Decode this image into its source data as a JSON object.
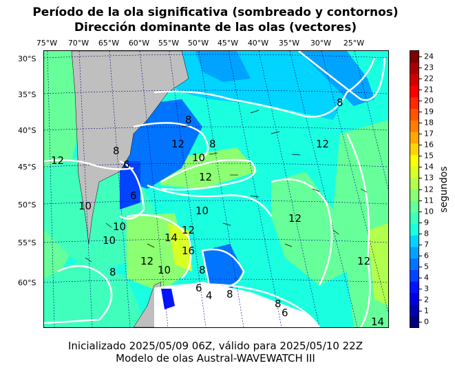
{
  "title": {
    "line1": "Período de la ola significativa (sombreado y contornos)",
    "line2": "Dirección dominante de las olas (vectores)"
  },
  "axes": {
    "longitude_labels": [
      "75°W",
      "70°W",
      "65°W",
      "60°W",
      "55°W",
      "50°W",
      "45°W",
      "40°W",
      "35°W",
      "30°W",
      "25°W"
    ],
    "latitude_labels": [
      "30°S",
      "35°S",
      "40°S",
      "45°S",
      "50°S",
      "55°S",
      "60°S"
    ]
  },
  "colorbar": {
    "label": "segundos",
    "ticks": [
      "0",
      "1",
      "2",
      "3",
      "4",
      "5",
      "6",
      "7",
      "8",
      "9",
      "10",
      "11",
      "12",
      "13",
      "14",
      "15",
      "16",
      "17",
      "18",
      "19",
      "20",
      "21",
      "22",
      "23",
      "24"
    ],
    "colors": [
      "#00007f",
      "#0000b2",
      "#0000e5",
      "#0014ff",
      "#0044ff",
      "#0074ff",
      "#00a4ff",
      "#00d4ff",
      "#1affe0",
      "#40ffbd",
      "#66ff99",
      "#8cff73",
      "#b2ff4d",
      "#d9ff26",
      "#ffff00",
      "#ffd400",
      "#ffa900",
      "#ff7e00",
      "#ff5400",
      "#ff2900",
      "#ff0000",
      "#d40000",
      "#aa0000",
      "#7f0000"
    ]
  },
  "contour_labels": [
    "8",
    "12",
    "10",
    "12",
    "8",
    "12",
    "8",
    "10",
    "12",
    "6",
    "6",
    "10",
    "10",
    "12",
    "10",
    "14",
    "16",
    "12",
    "12",
    "8",
    "8",
    "6",
    "4",
    "8",
    "8",
    "6",
    "12",
    "14",
    "8",
    "10"
  ],
  "colors": {
    "land": "#bfbfbf",
    "contour": "#ffffff",
    "antarctic_fill": "#ffffff"
  },
  "footer": {
    "line1": "Inicializado 2025/05/09 06Z, válido para 2025/05/10 22Z",
    "line2": "Modelo de olas Austral-WAVEWATCH III"
  }
}
